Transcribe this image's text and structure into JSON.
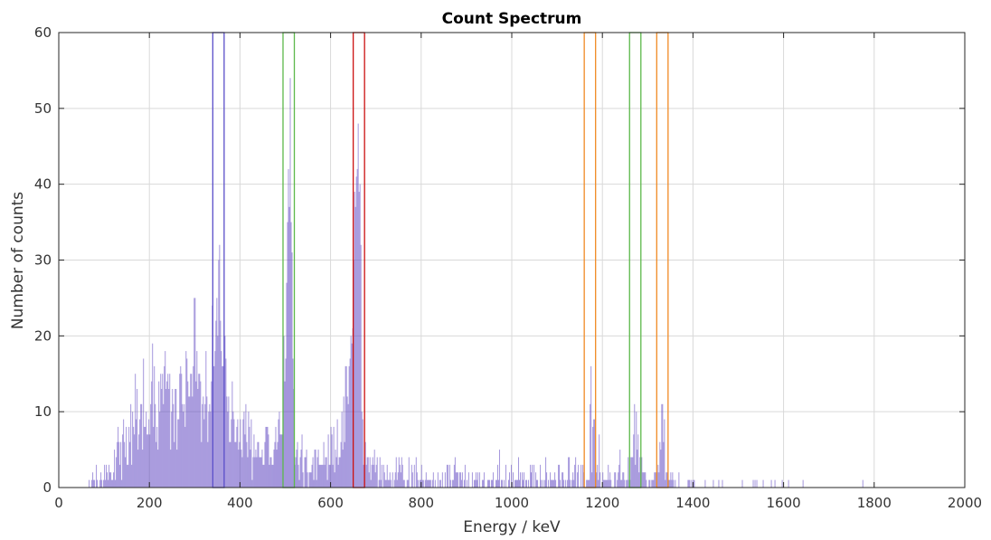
{
  "chart_data": {
    "type": "bar",
    "title": "Count Spectrum",
    "xlabel": "Energy / keV",
    "ylabel": "Number of counts",
    "xlim": [
      0,
      2000
    ],
    "ylim": [
      0,
      60
    ],
    "x_ticks": [
      0,
      200,
      400,
      600,
      800,
      1000,
      1200,
      1400,
      1600,
      1800,
      2000
    ],
    "y_ticks": [
      0,
      10,
      20,
      30,
      40,
      50,
      60
    ],
    "grid": true,
    "bar_color": "#5a3fbf",
    "bin_width_kev": 2,
    "spectrum": {
      "description_points": [
        [
          60,
          0
        ],
        [
          90,
          1
        ],
        [
          120,
          3
        ],
        [
          150,
          6
        ],
        [
          180,
          9
        ],
        [
          200,
          11
        ],
        [
          230,
          12
        ],
        [
          260,
          13
        ],
        [
          290,
          13
        ],
        [
          310,
          13
        ],
        [
          330,
          14
        ],
        [
          345,
          18
        ],
        [
          355,
          22
        ],
        [
          362,
          20
        ],
        [
          372,
          12
        ],
        [
          390,
          8
        ],
        [
          420,
          6
        ],
        [
          450,
          5
        ],
        [
          480,
          6
        ],
        [
          495,
          10
        ],
        [
          503,
          25
        ],
        [
          508,
          40
        ],
        [
          511,
          43
        ],
        [
          515,
          30
        ],
        [
          520,
          8
        ],
        [
          530,
          3
        ],
        [
          560,
          2.5
        ],
        [
          600,
          3
        ],
        [
          625,
          6
        ],
        [
          640,
          12
        ],
        [
          650,
          25
        ],
        [
          657,
          40
        ],
        [
          661,
          42
        ],
        [
          665,
          30
        ],
        [
          672,
          8
        ],
        [
          685,
          2
        ],
        [
          750,
          1.5
        ],
        [
          900,
          1.2
        ],
        [
          1100,
          1.0
        ],
        [
          1160,
          1.5
        ],
        [
          1170,
          3
        ],
        [
          1175,
          7
        ],
        [
          1180,
          8
        ],
        [
          1185,
          4
        ],
        [
          1195,
          1.5
        ],
        [
          1260,
          1.5
        ],
        [
          1270,
          5
        ],
        [
          1275,
          7
        ],
        [
          1280,
          3
        ],
        [
          1300,
          1
        ],
        [
          1325,
          2
        ],
        [
          1330,
          6
        ],
        [
          1335,
          7
        ],
        [
          1340,
          3
        ],
        [
          1350,
          0.8
        ],
        [
          1420,
          0.2
        ],
        [
          1500,
          0.1
        ],
        [
          1900,
          0
        ]
      ],
      "peak_maxima": [
        {
          "energy": 300,
          "max_count": 25
        },
        {
          "energy": 355,
          "max_count": 32
        },
        {
          "energy": 511,
          "max_count": 54
        },
        {
          "energy": 661,
          "max_count": 45
        },
        {
          "energy": 1173,
          "max_count": 11
        },
        {
          "energy": 1275,
          "max_count": 10
        },
        {
          "energy": 1332,
          "max_count": 11
        }
      ]
    },
    "regions": [
      {
        "xmin": 340,
        "xmax": 365,
        "color": "#5b4fc9"
      },
      {
        "xmin": 495,
        "xmax": 520,
        "color": "#5cb84a"
      },
      {
        "xmin": 650,
        "xmax": 675,
        "color": "#cc1111"
      },
      {
        "xmin": 1160,
        "xmax": 1185,
        "color": "#f08a24"
      },
      {
        "xmin": 1260,
        "xmax": 1285,
        "color": "#5cb84a"
      },
      {
        "xmin": 1320,
        "xmax": 1345,
        "color": "#f08a24"
      }
    ]
  }
}
